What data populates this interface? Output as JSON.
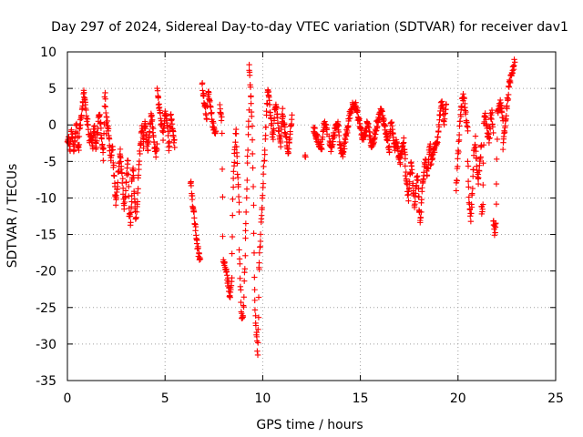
{
  "chart_data": {
    "type": "scatter",
    "title": "Day 297 of 2024, Sidereal Day-to-day VTEC variation (SDTVAR) for receiver dav1",
    "xlabel": "GPS time / hours",
    "ylabel": "SDTVAR / TECUs",
    "xlim": [
      0,
      25
    ],
    "ylim": [
      -35,
      10
    ],
    "xticks": [
      0,
      5,
      10,
      15,
      20,
      25
    ],
    "yticks": [
      10,
      5,
      0,
      -5,
      -10,
      -15,
      -20,
      -25,
      -30,
      -35
    ],
    "grid": true,
    "marker": "+",
    "color": "#ff0000",
    "series": [
      {
        "name": "SDTVAR",
        "segments": [
          {
            "x0": 0.0,
            "x1": 0.6,
            "ys": [
              -2.5,
              -1.8,
              -3.5,
              -0.8,
              -2.0,
              -4.0,
              -1.5,
              0.5,
              -2.8,
              -3.2
            ]
          },
          {
            "x0": 0.6,
            "x1": 1.3,
            "ys": [
              -1.0,
              0.5,
              2.5,
              4.5,
              3.0,
              1.0,
              -0.5,
              -2.0,
              -1.5,
              -3.0
            ]
          },
          {
            "x0": 1.3,
            "x1": 2.0,
            "ys": [
              -2.0,
              0.0,
              -3.5,
              -1.0,
              1.5,
              0.5,
              -2.5,
              -4.5,
              5.2,
              -1.0
            ]
          },
          {
            "x0": 2.0,
            "x1": 2.7,
            "ys": [
              1.0,
              -0.5,
              -2.5,
              -5.0,
              -3.0,
              -7.0,
              -10.5,
              -9.0,
              -6.0,
              -4.0
            ]
          },
          {
            "x0": 2.7,
            "x1": 3.3,
            "ys": [
              -3.0,
              -6.0,
              -8.0,
              -11.5,
              -9.5,
              -7.0,
              -5.0,
              -12.0,
              -13.5,
              -10.0
            ]
          },
          {
            "x0": 3.3,
            "x1": 3.9,
            "ys": [
              -8.0,
              -6.0,
              -9.5,
              -13.0,
              -11.0,
              -7.5,
              -4.0,
              -2.0,
              0.0,
              -3.5
            ]
          },
          {
            "x0": 3.9,
            "x1": 4.6,
            "ys": [
              -1.5,
              0.5,
              -2.0,
              -3.5,
              -1.0,
              1.5,
              -0.5,
              -2.5,
              -4.0,
              -3.0
            ]
          },
          {
            "x0": 4.6,
            "x1": 5.5,
            "ys": [
              4.5,
              2.5,
              0.0,
              -1.5,
              2.0,
              0.5,
              -3.0,
              1.5,
              -1.0,
              -2.5
            ]
          },
          {
            "x0": 6.3,
            "x1": 6.8,
            "ys": [
              -7.5,
              -9.0,
              -11.0,
              -12.5,
              -14.0,
              -15.5,
              -17.0,
              -18.0,
              -18.5
            ]
          },
          {
            "x0": 6.9,
            "x1": 7.6,
            "ys": [
              5.5,
              4.0,
              2.5,
              1.0,
              4.5,
              3.0,
              1.5,
              0.0,
              -0.5,
              -1.0
            ]
          },
          {
            "x0": 7.8,
            "x1": 8.3,
            "ys": [
              2.5,
              1.5,
              0.5,
              -18.5,
              -19.0,
              -19.5,
              -20.0,
              -21.0,
              -22.0,
              -23.0
            ]
          },
          {
            "x0": 8.3,
            "x1": 8.8,
            "ys": [
              -24.0,
              -22.5,
              -21.0,
              -10.0,
              -6.0,
              -3.0,
              -1.0,
              -5.0,
              -8.0,
              -12.0
            ]
          },
          {
            "x0": 8.8,
            "x1": 9.3,
            "ys": [
              -17.0,
              -22.0,
              -26.0,
              -27.0,
              -25.0,
              -20.0,
              -14.0,
              -8.0,
              -3.0,
              2.0
            ]
          },
          {
            "x0": 9.3,
            "x1": 9.8,
            "ys": [
              8.5,
              6.0,
              3.0,
              -1.0,
              -10.0,
              -22.0,
              -27.0,
              -29.0,
              -31.0,
              -24.0
            ]
          },
          {
            "x0": 9.8,
            "x1": 10.3,
            "ys": [
              -20.0,
              -17.0,
              -14.0,
              -11.0,
              -8.0,
              -5.0,
              -2.0,
              1.0,
              4.0,
              5.0
            ]
          },
          {
            "x0": 10.3,
            "x1": 11.0,
            "ys": [
              4.5,
              2.0,
              0.0,
              -2.0,
              1.5,
              2.5,
              0.5,
              -1.5,
              -3.0,
              1.0
            ]
          },
          {
            "x0": 11.0,
            "x1": 11.5,
            "ys": [
              2.0,
              0.0,
              -2.0,
              -4.0,
              -1.0,
              1.0
            ]
          },
          {
            "x0": 12.1,
            "x1": 12.2,
            "ys": [
              -4.0
            ]
          },
          {
            "x0": 12.6,
            "x1": 13.3,
            "ys": [
              -0.5,
              -1.5,
              -2.5,
              -3.0,
              0.5,
              -1.0
            ]
          },
          {
            "x0": 13.4,
            "x1": 14.4,
            "ys": [
              -2.0,
              -3.5,
              -1.5,
              -0.5,
              0.5,
              -2.5,
              -4.5,
              -3.0,
              -1.0,
              0.0
            ]
          },
          {
            "x0": 14.4,
            "x1": 15.5,
            "ys": [
              1.0,
              2.0,
              3.0,
              2.5,
              1.0,
              -0.5,
              -2.0,
              -1.0,
              0.5,
              -1.5
            ]
          },
          {
            "x0": 15.5,
            "x1": 16.5,
            "ys": [
              -2.0,
              -3.0,
              -1.5,
              0.0,
              1.0,
              2.0,
              1.0,
              -0.5,
              -2.0,
              -4.0
            ]
          },
          {
            "x0": 16.5,
            "x1": 17.3,
            "ys": [
              -1.0,
              0.0,
              -1.5,
              -3.0,
              -2.0,
              -4.0,
              -5.0,
              -3.5,
              -2.0,
              -4.5
            ]
          },
          {
            "x0": 17.3,
            "x1": 18.0,
            "ys": [
              -6.0,
              -8.0,
              -10.0,
              -7.0,
              -5.0,
              -8.5,
              -11.0,
              -9.0,
              -6.5,
              -10.0
            ]
          },
          {
            "x0": 18.0,
            "x1": 18.6,
            "ys": [
              -12.0,
              -13.0,
              -9.0,
              -6.0,
              -5.0,
              -7.0,
              -4.0,
              -3.0
            ]
          },
          {
            "x0": 18.6,
            "x1": 19.4,
            "ys": [
              -5.0,
              -4.0,
              -3.0,
              -2.0,
              1.0,
              3.5,
              0.0,
              2.5
            ]
          },
          {
            "x0": 19.9,
            "x1": 20.5,
            "ys": [
              -9.0,
              -6.0,
              -3.0,
              0.0,
              2.0,
              4.0,
              3.5,
              2.0,
              0.5,
              -1.0
            ]
          },
          {
            "x0": 20.5,
            "x1": 21.2,
            "ys": [
              -5.0,
              -11.0,
              -13.0,
              -9.0,
              -4.0,
              -2.0,
              -6.0,
              -8.0,
              -4.5,
              -3.0
            ]
          },
          {
            "x0": 21.2,
            "x1": 21.8,
            "ys": [
              -11.5,
              -12.0,
              0.5,
              1.5,
              0.0,
              -1.5,
              -2.0,
              1.0,
              1.5,
              -1.0
            ]
          },
          {
            "x0": 21.8,
            "x1": 22.3,
            "ys": [
              -13.5,
              -14.5,
              -14.0,
              1.5,
              2.5,
              3.0,
              2.0,
              0.5
            ]
          },
          {
            "x0": 22.3,
            "x1": 22.9,
            "ys": [
              -3.0,
              -1.0,
              0.5,
              2.5,
              4.0,
              5.5,
              6.5,
              7.5,
              8.0,
              8.5
            ]
          }
        ]
      }
    ]
  }
}
